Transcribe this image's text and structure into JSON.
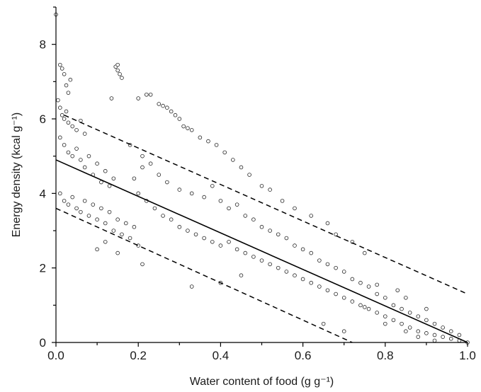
{
  "chart_data": {
    "type": "scatter",
    "title": "",
    "xlabel": "Water content of food (g g⁻¹)",
    "ylabel": "Energy density (kcal g⁻¹)",
    "xlim": [
      0.0,
      1.0
    ],
    "ylim": [
      0,
      9
    ],
    "x_ticks": [
      0.0,
      0.2,
      0.4,
      0.6,
      0.8,
      1.0
    ],
    "x_tick_labels": [
      "0.0",
      "0.2",
      "0.4",
      "0.6",
      "0.8",
      "1.0"
    ],
    "y_ticks": [
      0,
      2,
      4,
      6,
      8
    ],
    "y_tick_labels": [
      "0",
      "2",
      "4",
      "6",
      "8"
    ],
    "grid": false,
    "legend": "none",
    "marker": "open-circle",
    "regression_line": {
      "style": "solid",
      "x": [
        0.0,
        1.0
      ],
      "y": [
        4.9,
        0.0
      ]
    },
    "prediction_bounds": [
      {
        "style": "dashed",
        "x": [
          0.02,
          1.0
        ],
        "y": [
          6.1,
          1.3
        ]
      },
      {
        "style": "dashed",
        "x": [
          0.0,
          0.72
        ],
        "y": [
          3.6,
          0.0
        ]
      }
    ],
    "points": [
      [
        0.0,
        8.8
      ],
      [
        0.01,
        7.45
      ],
      [
        0.015,
        7.35
      ],
      [
        0.02,
        7.2
      ],
      [
        0.025,
        6.9
      ],
      [
        0.03,
        6.7
      ],
      [
        0.035,
        7.05
      ],
      [
        0.005,
        6.5
      ],
      [
        0.01,
        6.3
      ],
      [
        0.015,
        6.1
      ],
      [
        0.02,
        6.0
      ],
      [
        0.025,
        6.2
      ],
      [
        0.03,
        5.9
      ],
      [
        0.04,
        5.8
      ],
      [
        0.05,
        5.7
      ],
      [
        0.06,
        5.95
      ],
      [
        0.07,
        5.6
      ],
      [
        0.01,
        5.5
      ],
      [
        0.02,
        5.3
      ],
      [
        0.03,
        5.1
      ],
      [
        0.04,
        5.0
      ],
      [
        0.05,
        5.2
      ],
      [
        0.06,
        4.9
      ],
      [
        0.07,
        4.7
      ],
      [
        0.08,
        5.0
      ],
      [
        0.09,
        4.5
      ],
      [
        0.1,
        4.8
      ],
      [
        0.11,
        4.3
      ],
      [
        0.12,
        4.6
      ],
      [
        0.13,
        4.2
      ],
      [
        0.14,
        4.4
      ],
      [
        0.145,
        7.4
      ],
      [
        0.15,
        7.3
      ],
      [
        0.155,
        7.2
      ],
      [
        0.16,
        7.1
      ],
      [
        0.15,
        7.45
      ],
      [
        0.135,
        6.55
      ],
      [
        0.01,
        4.0
      ],
      [
        0.02,
        3.8
      ],
      [
        0.03,
        3.7
      ],
      [
        0.04,
        3.9
      ],
      [
        0.05,
        3.6
      ],
      [
        0.06,
        3.5
      ],
      [
        0.07,
        3.8
      ],
      [
        0.08,
        3.4
      ],
      [
        0.09,
        3.7
      ],
      [
        0.1,
        3.3
      ],
      [
        0.11,
        3.6
      ],
      [
        0.12,
        3.2
      ],
      [
        0.13,
        3.5
      ],
      [
        0.14,
        3.0
      ],
      [
        0.15,
        3.3
      ],
      [
        0.16,
        2.9
      ],
      [
        0.17,
        3.2
      ],
      [
        0.18,
        2.8
      ],
      [
        0.19,
        3.1
      ],
      [
        0.1,
        2.5
      ],
      [
        0.12,
        2.7
      ],
      [
        0.15,
        2.4
      ],
      [
        0.2,
        2.6
      ],
      [
        0.21,
        2.1
      ],
      [
        0.22,
        6.65
      ],
      [
        0.23,
        6.65
      ],
      [
        0.2,
        6.55
      ],
      [
        0.25,
        6.4
      ],
      [
        0.26,
        6.35
      ],
      [
        0.27,
        6.3
      ],
      [
        0.28,
        6.2
      ],
      [
        0.29,
        6.1
      ],
      [
        0.3,
        6.0
      ],
      [
        0.31,
        5.8
      ],
      [
        0.32,
        5.75
      ],
      [
        0.33,
        5.7
      ],
      [
        0.35,
        5.5
      ],
      [
        0.37,
        5.4
      ],
      [
        0.39,
        5.3
      ],
      [
        0.41,
        5.1
      ],
      [
        0.43,
        4.9
      ],
      [
        0.45,
        4.7
      ],
      [
        0.47,
        4.5
      ],
      [
        0.5,
        4.2
      ],
      [
        0.52,
        4.1
      ],
      [
        0.55,
        3.8
      ],
      [
        0.58,
        3.6
      ],
      [
        0.62,
        3.4
      ],
      [
        0.66,
        3.2
      ],
      [
        0.68,
        2.9
      ],
      [
        0.72,
        2.7
      ],
      [
        0.75,
        2.4
      ],
      [
        0.2,
        4.0
      ],
      [
        0.22,
        3.8
      ],
      [
        0.24,
        3.6
      ],
      [
        0.26,
        3.4
      ],
      [
        0.28,
        3.3
      ],
      [
        0.3,
        3.1
      ],
      [
        0.32,
        3.0
      ],
      [
        0.34,
        2.9
      ],
      [
        0.36,
        2.8
      ],
      [
        0.38,
        2.7
      ],
      [
        0.4,
        2.6
      ],
      [
        0.42,
        2.7
      ],
      [
        0.44,
        2.5
      ],
      [
        0.46,
        2.4
      ],
      [
        0.48,
        2.3
      ],
      [
        0.5,
        2.2
      ],
      [
        0.52,
        2.1
      ],
      [
        0.54,
        2.0
      ],
      [
        0.56,
        1.9
      ],
      [
        0.58,
        1.8
      ],
      [
        0.6,
        1.7
      ],
      [
        0.62,
        1.6
      ],
      [
        0.64,
        1.5
      ],
      [
        0.66,
        1.4
      ],
      [
        0.68,
        1.3
      ],
      [
        0.7,
        1.2
      ],
      [
        0.72,
        1.1
      ],
      [
        0.74,
        1.0
      ],
      [
        0.76,
        0.9
      ],
      [
        0.78,
        0.8
      ],
      [
        0.8,
        0.7
      ],
      [
        0.82,
        0.6
      ],
      [
        0.84,
        0.5
      ],
      [
        0.86,
        0.4
      ],
      [
        0.88,
        0.3
      ],
      [
        0.9,
        0.25
      ],
      [
        0.92,
        0.2
      ],
      [
        0.94,
        0.15
      ],
      [
        0.96,
        0.1
      ],
      [
        0.98,
        0.05
      ],
      [
        1.0,
        0.0
      ],
      [
        0.33,
        1.5
      ],
      [
        0.4,
        1.6
      ],
      [
        0.45,
        1.8
      ],
      [
        0.65,
        0.5
      ],
      [
        0.7,
        0.3
      ],
      [
        0.25,
        4.5
      ],
      [
        0.27,
        4.3
      ],
      [
        0.3,
        4.1
      ],
      [
        0.33,
        4.0
      ],
      [
        0.36,
        3.9
      ],
      [
        0.38,
        4.2
      ],
      [
        0.4,
        3.8
      ],
      [
        0.42,
        3.6
      ],
      [
        0.44,
        3.7
      ],
      [
        0.46,
        3.4
      ],
      [
        0.48,
        3.3
      ],
      [
        0.5,
        3.1
      ],
      [
        0.52,
        3.0
      ],
      [
        0.54,
        2.9
      ],
      [
        0.56,
        2.8
      ],
      [
        0.58,
        2.6
      ],
      [
        0.6,
        2.5
      ],
      [
        0.62,
        2.4
      ],
      [
        0.64,
        2.2
      ],
      [
        0.66,
        2.1
      ],
      [
        0.68,
        2.0
      ],
      [
        0.7,
        1.9
      ],
      [
        0.72,
        1.7
      ],
      [
        0.74,
        1.6
      ],
      [
        0.76,
        1.5
      ],
      [
        0.78,
        1.3
      ],
      [
        0.8,
        1.2
      ],
      [
        0.82,
        1.0
      ],
      [
        0.84,
        0.9
      ],
      [
        0.86,
        0.8
      ],
      [
        0.88,
        0.7
      ],
      [
        0.9,
        0.6
      ],
      [
        0.92,
        0.5
      ],
      [
        0.94,
        0.4
      ],
      [
        0.96,
        0.3
      ],
      [
        0.98,
        0.2
      ],
      [
        0.78,
        1.55
      ],
      [
        0.83,
        1.4
      ],
      [
        0.85,
        1.2
      ],
      [
        0.9,
        0.9
      ],
      [
        0.75,
        0.95
      ],
      [
        0.8,
        0.5
      ],
      [
        0.85,
        0.3
      ],
      [
        0.88,
        0.15
      ],
      [
        0.92,
        0.05
      ],
      [
        0.18,
        5.3
      ],
      [
        0.21,
        5.0
      ],
      [
        0.23,
        4.8
      ],
      [
        0.19,
        4.4
      ],
      [
        0.21,
        4.7
      ]
    ]
  }
}
